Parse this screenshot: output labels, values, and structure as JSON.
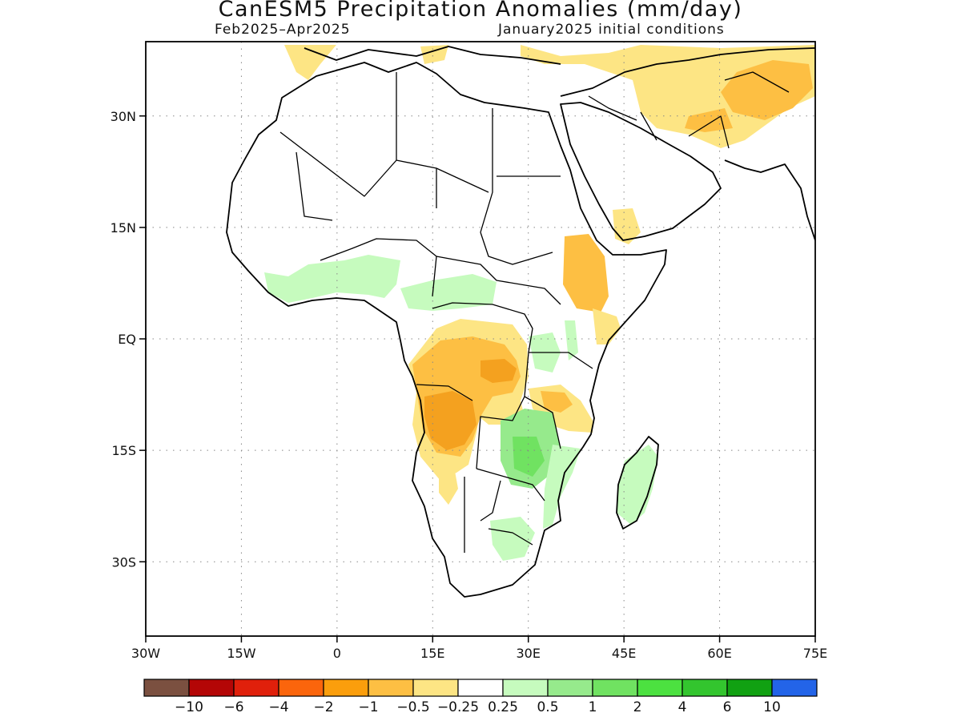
{
  "title": "CanESM5 Precipitation Anomalies (mm/day)",
  "subtitle_left": "Feb2025–Apr2025",
  "subtitle_right": "January2025 initial conditions",
  "map": {
    "lon_range": [
      -30,
      75
    ],
    "lat_range": [
      -40,
      40
    ],
    "lon_ticks": [
      {
        "value": -30,
        "label": "30W"
      },
      {
        "value": -15,
        "label": "15W"
      },
      {
        "value": 0,
        "label": "0"
      },
      {
        "value": 15,
        "label": "15E"
      },
      {
        "value": 30,
        "label": "30E"
      },
      {
        "value": 45,
        "label": "45E"
      },
      {
        "value": 60,
        "label": "60E"
      },
      {
        "value": 75,
        "label": "75E"
      }
    ],
    "lat_ticks": [
      {
        "value": 30,
        "label": "30N"
      },
      {
        "value": 15,
        "label": "15N"
      },
      {
        "value": 0,
        "label": "EQ"
      },
      {
        "value": -15,
        "label": "15S"
      },
      {
        "value": -30,
        "label": "30S"
      }
    ],
    "gridlines": "dotted",
    "coastline_color": "#000000",
    "anomaly_regions": [
      {
        "region": "Angola / southern DR Congo",
        "category": "-2 to -1",
        "color": "#f4a11f"
      },
      {
        "region": "Central Congo Basin",
        "category": "-1 to -0.5",
        "color": "#fdbf43"
      },
      {
        "region": "Gabon / Congo coast",
        "category": "-1 to -0.5",
        "color": "#fdbf43"
      },
      {
        "region": "Ethiopian Highlands",
        "category": "-1 to -0.5",
        "color": "#fdbf43"
      },
      {
        "region": "Afghanistan / Pakistan",
        "category": "-1 to -0.5",
        "color": "#fdbf43"
      },
      {
        "region": "Iran / Middle East",
        "category": "-0.5 to -0.25",
        "color": "#fde584"
      },
      {
        "region": "Yemen",
        "category": "-0.5 to -0.25",
        "color": "#fde584"
      },
      {
        "region": "Tanzania",
        "category": "-0.5 to -0.25",
        "color": "#fde584"
      },
      {
        "region": "Namibia",
        "category": "-0.5 to -0.25",
        "color": "#fde584"
      },
      {
        "region": "Zambia / Malawi / Mozambique",
        "category": "0.5 to 1",
        "color": "#96ea8c"
      },
      {
        "region": "Guinea Coast / Nigeria",
        "category": "0.25 to 0.5",
        "color": "#c6fbbe"
      },
      {
        "region": "Central African Republic",
        "category": "0.25 to 0.5",
        "color": "#c6fbbe"
      },
      {
        "region": "Madagascar",
        "category": "0.25 to 0.5",
        "color": "#c6fbbe"
      },
      {
        "region": "South Africa east",
        "category": "0.25 to 0.5",
        "color": "#c6fbbe"
      }
    ]
  },
  "colorbar": {
    "colors": [
      "#7b5040",
      "#b40606",
      "#e0200b",
      "#fb650c",
      "#fb9e0c",
      "#fdbf43",
      "#fde584",
      "#ffffff",
      "#c6fbbe",
      "#96ea8c",
      "#70e261",
      "#4ce140",
      "#33c52e",
      "#11a112",
      "#2364e8"
    ],
    "labels": [
      "−10",
      "−6",
      "−4",
      "−2",
      "−1",
      "−0.5",
      "−0.25",
      "0.25",
      "0.5",
      "1",
      "2",
      "4",
      "6",
      "10"
    ]
  }
}
